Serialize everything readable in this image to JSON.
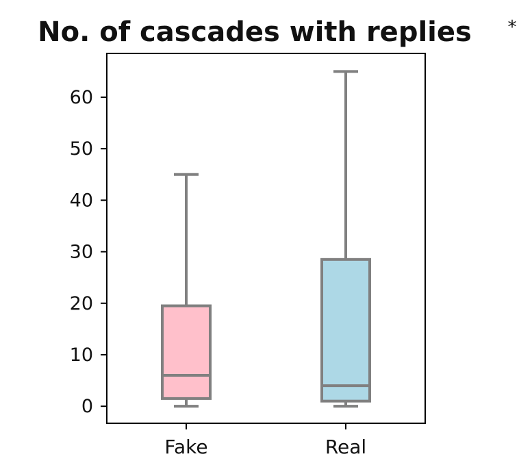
{
  "chart_data": {
    "type": "box",
    "title": "No. of cascades with replies",
    "title_marker": "*",
    "xlabel": "",
    "ylabel": "",
    "categories": [
      "Fake",
      "Real"
    ],
    "ylim": [
      -3.3,
      68.5
    ],
    "yticks": [
      0,
      10,
      20,
      30,
      40,
      50,
      60
    ],
    "grid": false,
    "series": [
      {
        "category": "Fake",
        "whisker_low": 0,
        "q1": 1.5,
        "median": 6,
        "q3": 19.5,
        "whisker_high": 45,
        "color": "#ffc0cb"
      },
      {
        "category": "Real",
        "whisker_low": 0,
        "q1": 1,
        "median": 4,
        "q3": 28.5,
        "whisker_high": 65,
        "color": "#add8e6"
      }
    ],
    "line_color": "#808080"
  }
}
